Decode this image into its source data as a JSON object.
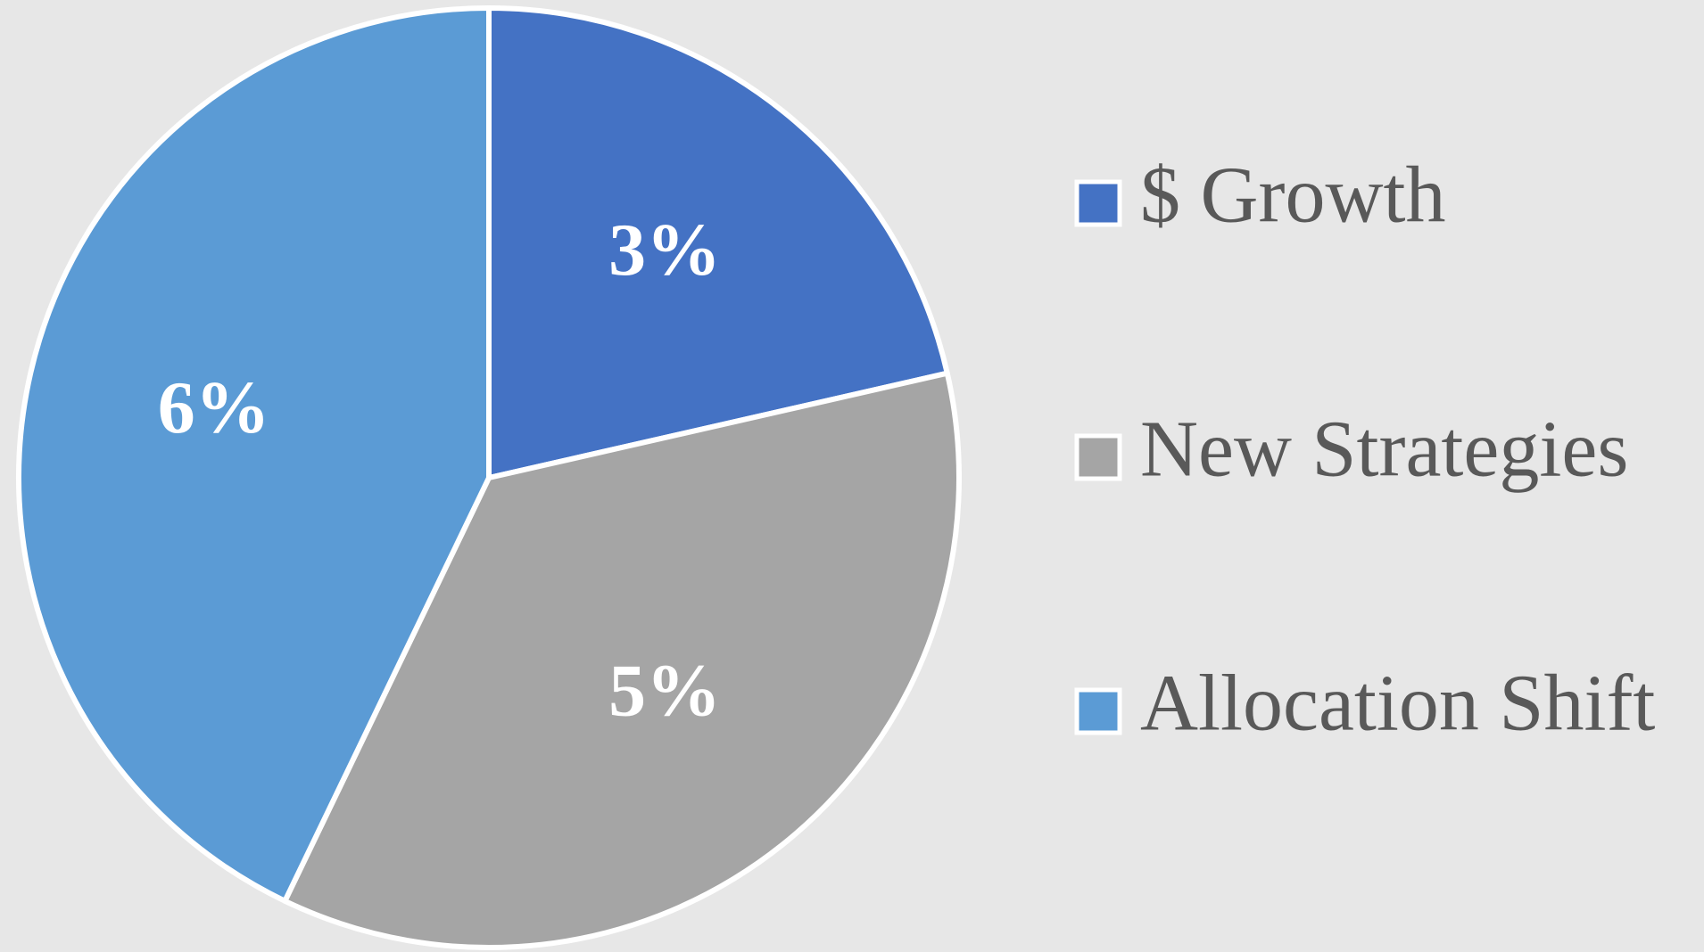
{
  "chart_data": {
    "type": "pie",
    "categories": [
      "$ Growth",
      "New Strategies",
      "Allocation Shift"
    ],
    "values": [
      3,
      5,
      6
    ],
    "value_labels": [
      "3%",
      "5%",
      "6%"
    ],
    "colors": [
      "#4472c4",
      "#a5a5a5",
      "#5b9bd5"
    ],
    "legend": "right"
  }
}
